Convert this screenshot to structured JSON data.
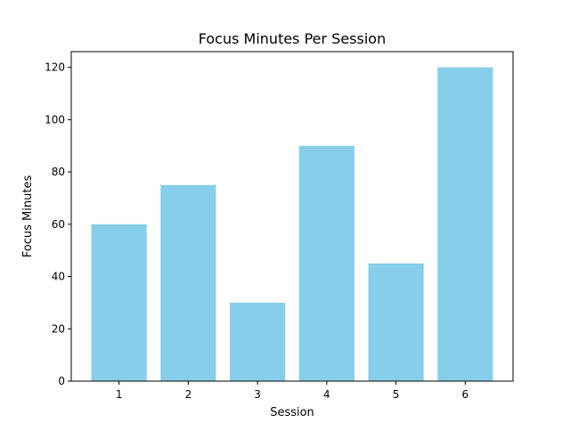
{
  "chart_data": {
    "type": "bar",
    "title": "Focus Minutes Per Session",
    "xlabel": "Session",
    "ylabel": "Focus Minutes",
    "categories": [
      "1",
      "2",
      "3",
      "4",
      "5",
      "6"
    ],
    "values": [
      60,
      75,
      30,
      90,
      45,
      120
    ],
    "ylim": [
      0,
      126
    ],
    "yticks": [
      0,
      20,
      40,
      60,
      80,
      100,
      120
    ],
    "bar_color": "#87ceeb",
    "grid": false,
    "legend": "none"
  }
}
